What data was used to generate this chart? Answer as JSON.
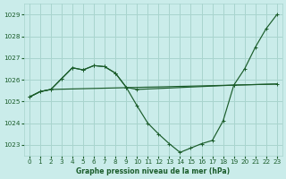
{
  "title": "Graphe pression niveau de la mer (hPa)",
  "bg_color": "#caecea",
  "grid_color": "#a8d4ce",
  "line_color": "#1a5c2a",
  "ylim": [
    1022.5,
    1029.5
  ],
  "yticks": [
    1023,
    1024,
    1025,
    1026,
    1027,
    1028,
    1029
  ],
  "xlim": [
    -0.5,
    23.5
  ],
  "xticks": [
    0,
    1,
    2,
    3,
    4,
    5,
    6,
    7,
    8,
    9,
    10,
    11,
    12,
    13,
    14,
    15,
    16,
    17,
    18,
    19,
    20,
    21,
    22,
    23
  ],
  "line1_x": [
    0,
    1,
    2,
    19,
    23
  ],
  "line1_y": [
    1025.2,
    1025.45,
    1025.55,
    1025.75,
    1025.8
  ],
  "line2_x": [
    0,
    1,
    2,
    3,
    4,
    5,
    6,
    7,
    8,
    9,
    10,
    11,
    12,
    13,
    14,
    15,
    16,
    17,
    18,
    19,
    23
  ],
  "line2_y": [
    1025.2,
    1025.45,
    1025.55,
    1026.05,
    1026.55,
    1026.45,
    1026.65,
    1026.6,
    1026.3,
    1025.65,
    1024.8,
    1024.0,
    1023.5,
    1023.05,
    1022.65,
    1022.85,
    1023.05,
    1023.2,
    1024.1,
    1025.75,
    1025.8
  ],
  "line3_x": [
    0,
    1,
    2,
    3,
    4,
    5,
    6,
    7,
    8,
    9,
    10,
    19,
    20,
    21,
    22,
    23
  ],
  "line3_y": [
    1025.2,
    1025.45,
    1025.55,
    1026.05,
    1026.55,
    1026.45,
    1026.65,
    1026.6,
    1026.3,
    1025.65,
    1025.55,
    1025.75,
    1026.5,
    1027.5,
    1028.35,
    1029.0
  ]
}
